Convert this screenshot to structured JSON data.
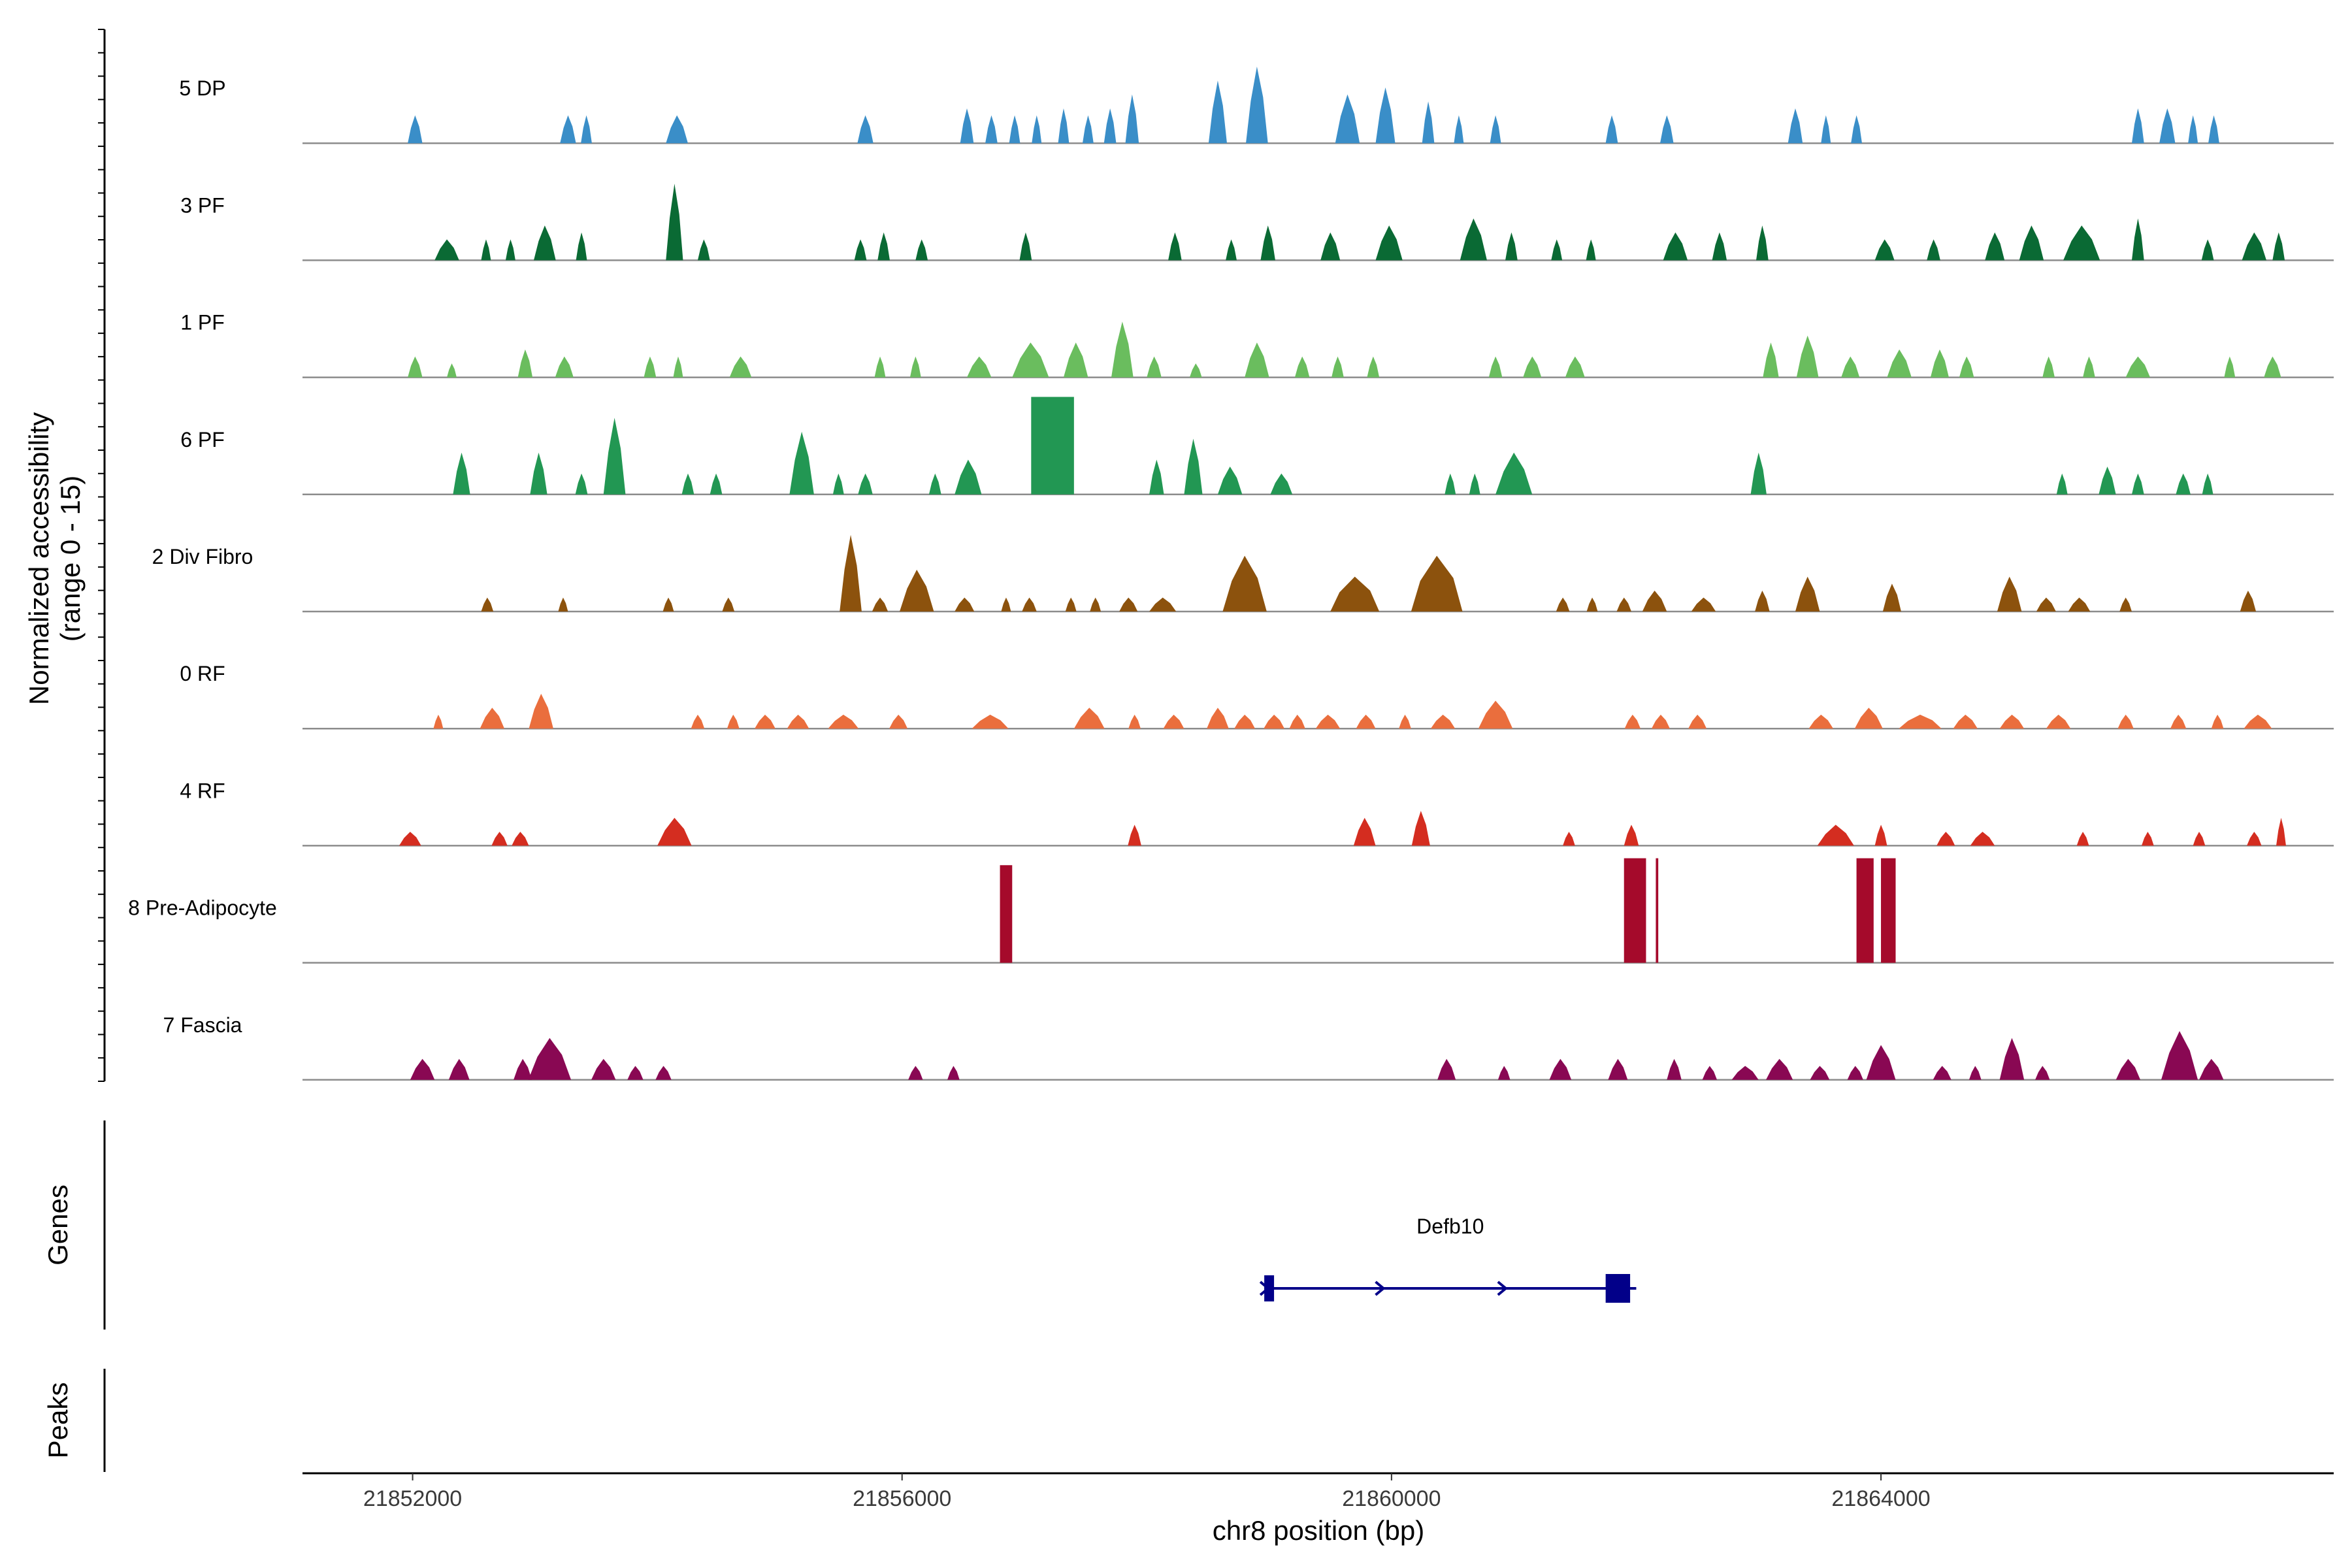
{
  "chart_data": {
    "type": "area",
    "title": "",
    "ylabel": "Normalized accessibility",
    "ylabel_range": "(range 0 - 15)",
    "xlabel": "chr8 position (bp)",
    "xlim": [
      21851100,
      21867700
    ],
    "ylim": [
      0,
      15
    ],
    "xticks": [
      21852000,
      21856000,
      21860000,
      21864000
    ],
    "xtick_labels": [
      "21852000",
      "21856000",
      "21860000",
      "21864000"
    ],
    "series": [
      {
        "name": "5 DP",
        "color": "#3a8ec8",
        "peaks": [
          [
            21852020,
            120,
            4
          ],
          [
            21853270,
            130,
            4
          ],
          [
            21853420,
            90,
            4
          ],
          [
            21854160,
            180,
            4
          ],
          [
            21855700,
            130,
            4
          ],
          [
            21856530,
            110,
            5
          ],
          [
            21856730,
            100,
            4
          ],
          [
            21856920,
            90,
            4
          ],
          [
            21857100,
            80,
            4
          ],
          [
            21857320,
            90,
            5
          ],
          [
            21857520,
            90,
            4
          ],
          [
            21857700,
            100,
            5
          ],
          [
            21857880,
            110,
            7
          ],
          [
            21858580,
            150,
            9
          ],
          [
            21858900,
            180,
            11
          ],
          [
            21859640,
            200,
            7
          ],
          [
            21859950,
            160,
            8
          ],
          [
            21860300,
            100,
            6
          ],
          [
            21860550,
            80,
            4
          ],
          [
            21860850,
            90,
            4
          ],
          [
            21861800,
            100,
            4
          ],
          [
            21862250,
            110,
            4
          ],
          [
            21863300,
            120,
            5
          ],
          [
            21863550,
            80,
            4
          ],
          [
            21863800,
            90,
            4
          ],
          [
            21866100,
            100,
            5
          ],
          [
            21866340,
            130,
            5
          ],
          [
            21866550,
            80,
            4
          ],
          [
            21866720,
            90,
            4
          ]
        ]
      },
      {
        "name": "3 PF",
        "color": "#0a6a34",
        "peaks": [
          [
            21852280,
            200,
            3
          ],
          [
            21852600,
            80,
            3
          ],
          [
            21852800,
            80,
            3
          ],
          [
            21853080,
            180,
            5
          ],
          [
            21853380,
            90,
            4
          ],
          [
            21854140,
            140,
            11
          ],
          [
            21854380,
            100,
            3
          ],
          [
            21855660,
            100,
            3
          ],
          [
            21855850,
            100,
            4
          ],
          [
            21856160,
            100,
            3
          ],
          [
            21857010,
            100,
            4
          ],
          [
            21858230,
            110,
            4
          ],
          [
            21858690,
            90,
            3
          ],
          [
            21858990,
            120,
            5
          ],
          [
            21859500,
            160,
            4
          ],
          [
            21859980,
            220,
            5
          ],
          [
            21860670,
            220,
            6
          ],
          [
            21860980,
            100,
            4
          ],
          [
            21861350,
            90,
            3
          ],
          [
            21861630,
            80,
            3
          ],
          [
            21862320,
            200,
            4
          ],
          [
            21862680,
            120,
            4
          ],
          [
            21863030,
            100,
            5
          ],
          [
            21864030,
            160,
            3
          ],
          [
            21864430,
            110,
            3
          ],
          [
            21864930,
            160,
            4
          ],
          [
            21865230,
            200,
            5
          ],
          [
            21865640,
            300,
            5
          ],
          [
            21866100,
            100,
            6
          ],
          [
            21866670,
            100,
            3
          ],
          [
            21867050,
            200,
            4
          ],
          [
            21867250,
            100,
            4
          ]
        ]
      },
      {
        "name": "1 PF",
        "color": "#6abd5e",
        "peaks": [
          [
            21852020,
            120,
            3
          ],
          [
            21852320,
            80,
            2
          ],
          [
            21852920,
            120,
            4
          ],
          [
            21853240,
            150,
            3
          ],
          [
            21853940,
            100,
            3
          ],
          [
            21854170,
            80,
            3
          ],
          [
            21854680,
            180,
            3
          ],
          [
            21855820,
            90,
            3
          ],
          [
            21856110,
            90,
            3
          ],
          [
            21856630,
            200,
            3
          ],
          [
            21857050,
            300,
            5
          ],
          [
            21857420,
            200,
            5
          ],
          [
            21857800,
            180,
            8
          ],
          [
            21858060,
            120,
            3
          ],
          [
            21858400,
            100,
            2
          ],
          [
            21858900,
            200,
            5
          ],
          [
            21859270,
            120,
            3
          ],
          [
            21859560,
            100,
            3
          ],
          [
            21859850,
            100,
            3
          ],
          [
            21860850,
            110,
            3
          ],
          [
            21861150,
            150,
            3
          ],
          [
            21861500,
            160,
            3
          ],
          [
            21863100,
            130,
            5
          ],
          [
            21863400,
            180,
            6
          ],
          [
            21863750,
            150,
            3
          ],
          [
            21864150,
            200,
            4
          ],
          [
            21864480,
            150,
            4
          ],
          [
            21864700,
            120,
            3
          ],
          [
            21865370,
            100,
            3
          ],
          [
            21865700,
            100,
            3
          ],
          [
            21866100,
            200,
            3
          ],
          [
            21866850,
            90,
            3
          ],
          [
            21867200,
            140,
            3
          ]
        ]
      },
      {
        "name": "6 PF",
        "color": "#229753",
        "peaks": [
          [
            21852400,
            140,
            6
          ],
          [
            21853030,
            140,
            6
          ],
          [
            21853380,
            100,
            3
          ],
          [
            21853650,
            180,
            11
          ],
          [
            21854250,
            100,
            3
          ],
          [
            21854480,
            100,
            3
          ],
          [
            21855180,
            200,
            9
          ],
          [
            21855480,
            90,
            3
          ],
          [
            21855700,
            120,
            3
          ],
          [
            21856270,
            100,
            3
          ],
          [
            21856540,
            220,
            5
          ],
          [
            21857230,
            350,
            14
          ],
          [
            21858080,
            120,
            5
          ],
          [
            21858380,
            150,
            8
          ],
          [
            21858680,
            200,
            4
          ],
          [
            21859100,
            180,
            3
          ],
          [
            21860480,
            90,
            3
          ],
          [
            21860680,
            90,
            3
          ],
          [
            21861000,
            300,
            6
          ],
          [
            21863000,
            130,
            6
          ],
          [
            21865480,
            90,
            3
          ],
          [
            21865850,
            140,
            4
          ],
          [
            21866100,
            100,
            3
          ],
          [
            21866470,
            120,
            3
          ],
          [
            21866670,
            90,
            3
          ]
        ]
      },
      {
        "name": "2 Div Fibro",
        "color": "#8c520d",
        "peaks": [
          [
            21852610,
            100,
            2
          ],
          [
            21853230,
            80,
            2
          ],
          [
            21854090,
            90,
            2
          ],
          [
            21854580,
            100,
            2
          ],
          [
            21855580,
            180,
            11
          ],
          [
            21855820,
            130,
            2
          ],
          [
            21856120,
            280,
            6
          ],
          [
            21856510,
            160,
            2
          ],
          [
            21856850,
            80,
            2
          ],
          [
            21857040,
            120,
            2
          ],
          [
            21857380,
            90,
            2
          ],
          [
            21857580,
            90,
            2
          ],
          [
            21857850,
            150,
            2
          ],
          [
            21858130,
            220,
            2
          ],
          [
            21858800,
            360,
            8
          ],
          [
            21859700,
            400,
            5
          ],
          [
            21860370,
            420,
            8
          ],
          [
            21861400,
            110,
            2
          ],
          [
            21861640,
            90,
            2
          ],
          [
            21861900,
            120,
            2
          ],
          [
            21862150,
            200,
            3
          ],
          [
            21862550,
            200,
            2
          ],
          [
            21863030,
            120,
            3
          ],
          [
            21863400,
            200,
            5
          ],
          [
            21864090,
            150,
            4
          ],
          [
            21865050,
            200,
            5
          ],
          [
            21865350,
            160,
            2
          ],
          [
            21865620,
            180,
            2
          ],
          [
            21866000,
            100,
            2
          ],
          [
            21867000,
            130,
            3
          ]
        ]
      },
      {
        "name": "0 RF",
        "color": "#ea6e3d",
        "peaks": [
          [
            21852210,
            80,
            2
          ],
          [
            21852650,
            200,
            3
          ],
          [
            21853050,
            200,
            5
          ],
          [
            21854330,
            110,
            2
          ],
          [
            21854620,
            100,
            2
          ],
          [
            21854880,
            170,
            2
          ],
          [
            21855150,
            180,
            2
          ],
          [
            21855520,
            250,
            2
          ],
          [
            21855970,
            150,
            2
          ],
          [
            21856720,
            300,
            2
          ],
          [
            21857530,
            250,
            3
          ],
          [
            21857900,
            100,
            2
          ],
          [
            21858220,
            170,
            2
          ],
          [
            21858580,
            180,
            3
          ],
          [
            21858800,
            170,
            2
          ],
          [
            21859040,
            170,
            2
          ],
          [
            21859230,
            130,
            2
          ],
          [
            21859480,
            200,
            2
          ],
          [
            21859790,
            160,
            2
          ],
          [
            21860110,
            100,
            2
          ],
          [
            21860420,
            200,
            2
          ],
          [
            21860850,
            280,
            4
          ],
          [
            21861970,
            130,
            2
          ],
          [
            21862200,
            150,
            2
          ],
          [
            21862500,
            150,
            2
          ],
          [
            21863510,
            200,
            2
          ],
          [
            21863900,
            230,
            3
          ],
          [
            21864320,
            350,
            2
          ],
          [
            21864690,
            200,
            2
          ],
          [
            21865070,
            200,
            2
          ],
          [
            21865450,
            200,
            2
          ],
          [
            21866000,
            130,
            2
          ],
          [
            21866430,
            130,
            2
          ],
          [
            21866750,
            100,
            2
          ],
          [
            21867080,
            230,
            2
          ]
        ]
      },
      {
        "name": "4 RF",
        "color": "#d42d20",
        "peaks": [
          [
            21851980,
            180,
            2
          ],
          [
            21852710,
            130,
            2
          ],
          [
            21852880,
            140,
            2
          ],
          [
            21854140,
            280,
            4
          ],
          [
            21857900,
            110,
            3
          ],
          [
            21859780,
            180,
            4
          ],
          [
            21860240,
            150,
            5
          ],
          [
            21861450,
            100,
            2
          ],
          [
            21861960,
            120,
            3
          ],
          [
            21863630,
            300,
            3
          ],
          [
            21864000,
            100,
            3
          ],
          [
            21864530,
            150,
            2
          ],
          [
            21864830,
            200,
            2
          ],
          [
            21865650,
            100,
            2
          ],
          [
            21866180,
            100,
            2
          ],
          [
            21866600,
            100,
            2
          ],
          [
            21867050,
            120,
            2
          ],
          [
            21867270,
            80,
            4
          ]
        ]
      },
      {
        "name": "8 Pre-Adipocyte",
        "color": "#a50a2b",
        "peaks": [
          [
            21856850,
            100,
            14
          ],
          [
            21861990,
            180,
            15
          ],
          [
            21862170,
            20,
            15
          ],
          [
            21863870,
            140,
            15
          ],
          [
            21864060,
            120,
            15
          ]
        ]
      },
      {
        "name": "7 Fascia",
        "color": "#890853",
        "peaks": [
          [
            21852080,
            200,
            3
          ],
          [
            21852380,
            170,
            3
          ],
          [
            21852900,
            150,
            3
          ],
          [
            21853120,
            350,
            6
          ],
          [
            21853560,
            200,
            3
          ],
          [
            21853820,
            130,
            2
          ],
          [
            21854050,
            130,
            2
          ],
          [
            21856110,
            120,
            2
          ],
          [
            21856420,
            100,
            2
          ],
          [
            21860450,
            150,
            3
          ],
          [
            21860920,
            100,
            2
          ],
          [
            21861380,
            180,
            3
          ],
          [
            21861850,
            160,
            3
          ],
          [
            21862310,
            120,
            3
          ],
          [
            21862600,
            120,
            2
          ],
          [
            21862890,
            220,
            2
          ],
          [
            21863170,
            220,
            3
          ],
          [
            21863500,
            160,
            2
          ],
          [
            21863790,
            130,
            2
          ],
          [
            21864000,
            240,
            5
          ],
          [
            21864500,
            150,
            2
          ],
          [
            21864770,
            100,
            2
          ],
          [
            21865070,
            200,
            6
          ],
          [
            21865320,
            120,
            2
          ],
          [
            21866020,
            200,
            3
          ],
          [
            21866440,
            300,
            7
          ],
          [
            21866700,
            200,
            3
          ]
        ]
      }
    ],
    "gene_track": {
      "label": "Genes",
      "gene_name": "Defb10",
      "strand": "+",
      "start": 21858960,
      "end": 21862000,
      "exons": [
        [
          21858960,
          21859040
        ],
        [
          21861750,
          21861950
        ]
      ],
      "color": "#020089"
    },
    "peaks_track": {
      "label": "Peaks",
      "regions": []
    }
  }
}
